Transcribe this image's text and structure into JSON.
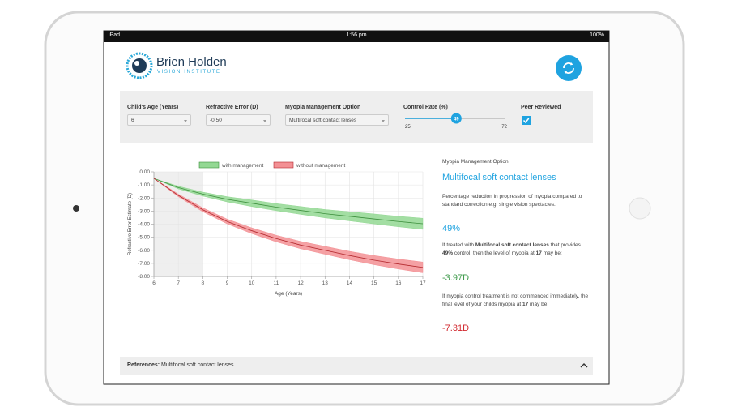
{
  "status_bar": {
    "device": "iPad",
    "time": "1:56 pm",
    "battery": "100%"
  },
  "header": {
    "logo_name": "Brien Holden",
    "logo_subtitle": "VISION INSTITUTE"
  },
  "controls": {
    "age": {
      "label": "Child's Age (Years)",
      "value": "6"
    },
    "refraction": {
      "label": "Refractive Error (D)",
      "value": "-0.50"
    },
    "option": {
      "label": "Myopia Management Option",
      "value": "Multifocal soft contact lenses"
    },
    "control_rate": {
      "label": "Control Rate (%)",
      "value": 49,
      "min": 25,
      "max": 72
    },
    "peer_reviewed": {
      "label": "Peer Reviewed",
      "checked": true
    }
  },
  "chart_data": {
    "type": "line",
    "x_label": "Age (Years)",
    "y_label": "Refractive Error Estimate (D)",
    "x": [
      6,
      7,
      8,
      9,
      10,
      11,
      12,
      13,
      14,
      15,
      16,
      17
    ],
    "xlim": [
      6,
      17
    ],
    "xticks": [
      6,
      7,
      8,
      9,
      10,
      11,
      12,
      13,
      14,
      15,
      16,
      17
    ],
    "ylim": [
      -8,
      0
    ],
    "yticks": [
      {
        "value": 0,
        "label": "0.00"
      },
      {
        "value": -1,
        "label": "-1.00"
      },
      {
        "value": -2,
        "label": "-2.00"
      },
      {
        "value": -3,
        "label": "-3.00"
      },
      {
        "value": -4,
        "label": "-4.00"
      },
      {
        "value": -5,
        "label": "-5.00"
      },
      {
        "value": -6,
        "label": "-6.00"
      },
      {
        "value": -7,
        "label": "-7.00"
      },
      {
        "value": -8,
        "label": "-8.00"
      }
    ],
    "grid": true,
    "highlight_xrange": [
      6,
      8
    ],
    "legend": "top",
    "series": [
      {
        "name": "with management",
        "color": "#3d8f3d",
        "band_color": "#93d893",
        "values": [
          -0.5,
          -1.2,
          -1.7,
          -2.1,
          -2.4,
          -2.7,
          -2.95,
          -3.2,
          -3.4,
          -3.6,
          -3.8,
          -3.97
        ],
        "low": [
          -0.5,
          -1.3,
          -1.85,
          -2.3,
          -2.65,
          -2.97,
          -3.25,
          -3.52,
          -3.75,
          -3.98,
          -4.2,
          -4.4
        ],
        "high": [
          -0.5,
          -1.1,
          -1.55,
          -1.9,
          -2.15,
          -2.43,
          -2.65,
          -2.88,
          -3.05,
          -3.22,
          -3.4,
          -3.55
        ]
      },
      {
        "name": "without management",
        "color": "#b3282d",
        "band_color": "#f39094",
        "values": [
          -0.5,
          -1.8,
          -2.9,
          -3.8,
          -4.5,
          -5.1,
          -5.6,
          -6.0,
          -6.4,
          -6.75,
          -7.05,
          -7.31
        ],
        "low": [
          -0.5,
          -1.9,
          -3.05,
          -3.98,
          -4.72,
          -5.35,
          -5.88,
          -6.3,
          -6.72,
          -7.1,
          -7.43,
          -7.72
        ],
        "high": [
          -0.5,
          -1.7,
          -2.75,
          -3.62,
          -4.28,
          -4.85,
          -5.32,
          -5.7,
          -6.08,
          -6.4,
          -6.67,
          -6.9
        ]
      }
    ]
  },
  "summary": {
    "heading": "Myopia Management Option:",
    "option": "Multifocal soft contact lenses",
    "description": "Percentage reduction in progression of myopia compared to standard correction e.g. single vision spectacles.",
    "reduction": "49%",
    "treated_parts": [
      "If treated with ",
      "Multifocal soft contact lenses",
      " that provides ",
      "49%",
      " control, then the level of myopia at ",
      "17",
      " may be:"
    ],
    "treated_result": "-3.97D",
    "untreated_parts": [
      "If myopia control treatment is not commenced immediately, the final level of your childs myopia at ",
      "17",
      " may be:"
    ],
    "untreated_result": "-7.31D"
  },
  "references": {
    "label": "References:",
    "value": "Multifocal soft contact lenses"
  }
}
